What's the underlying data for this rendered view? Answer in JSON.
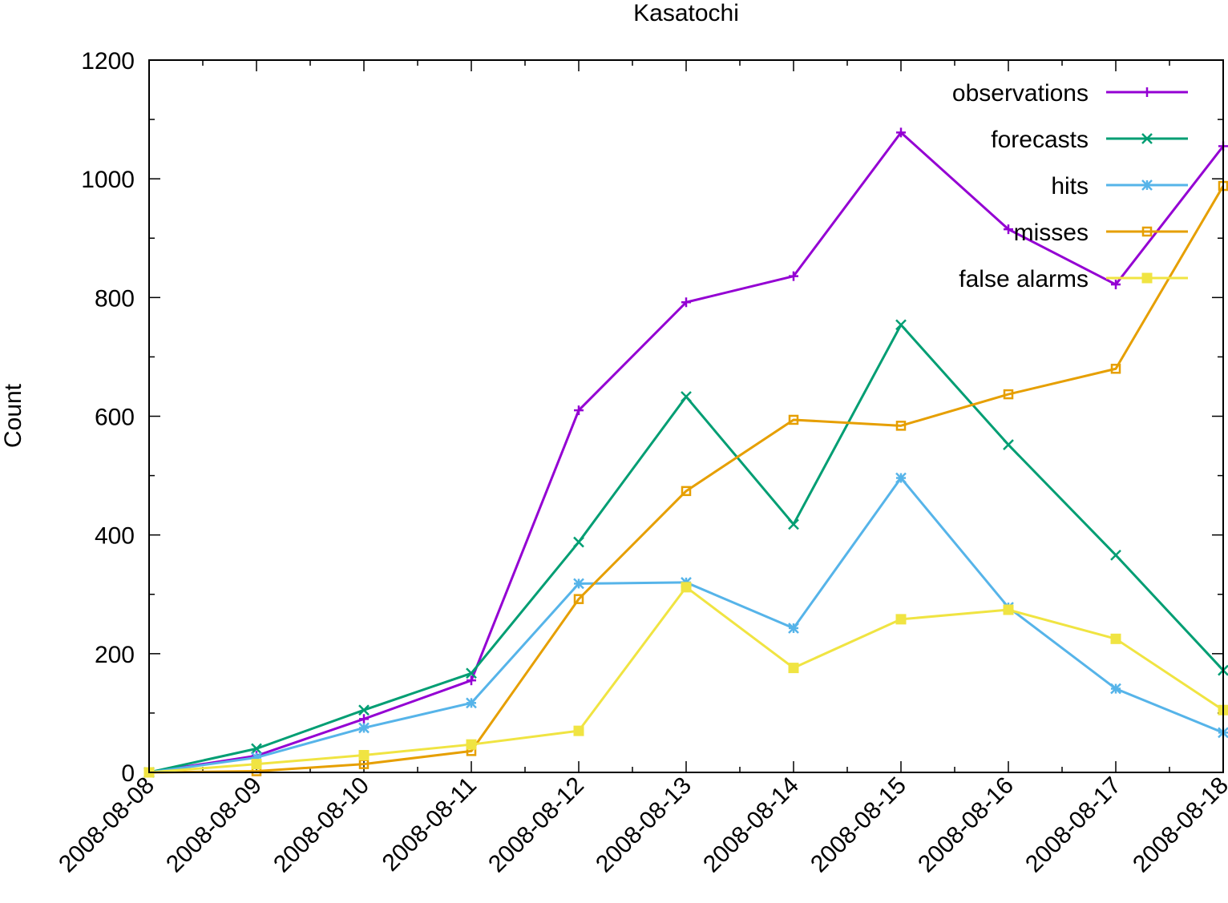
{
  "chart_data": {
    "type": "line",
    "title": "Kasatochi",
    "xlabel": "",
    "ylabel": "Count",
    "categories": [
      "2008-08-08",
      "2008-08-09",
      "2008-08-10",
      "2008-08-11",
      "2008-08-12",
      "2008-08-13",
      "2008-08-14",
      "2008-08-15",
      "2008-08-16",
      "2008-08-17",
      "2008-08-18"
    ],
    "ylim": [
      0,
      1200
    ],
    "yticks": [
      0,
      200,
      400,
      600,
      800,
      1000,
      1200
    ],
    "grid": false,
    "legend_position": "top-right",
    "series": [
      {
        "name": "observations",
        "color": "#9400d3",
        "marker": "plus",
        "values": [
          0,
          28,
          90,
          155,
          610,
          792,
          836,
          1078,
          915,
          822,
          1055
        ]
      },
      {
        "name": "forecasts",
        "color": "#009e73",
        "marker": "cross",
        "values": [
          0,
          40,
          105,
          167,
          388,
          633,
          418,
          754,
          552,
          366,
          172
        ]
      },
      {
        "name": "hits",
        "color": "#56b4e9",
        "marker": "star",
        "values": [
          0,
          25,
          75,
          117,
          318,
          320,
          243,
          496,
          278,
          141,
          67
        ]
      },
      {
        "name": "misses",
        "color": "#e69f00",
        "marker": "square-open",
        "values": [
          0,
          2,
          14,
          36,
          292,
          474,
          594,
          584,
          637,
          680,
          988
        ]
      },
      {
        "name": "false alarms",
        "color": "#f0e442",
        "marker": "square-filled",
        "values": [
          0,
          14,
          29,
          47,
          70,
          312,
          176,
          258,
          274,
          225,
          105
        ]
      }
    ]
  }
}
